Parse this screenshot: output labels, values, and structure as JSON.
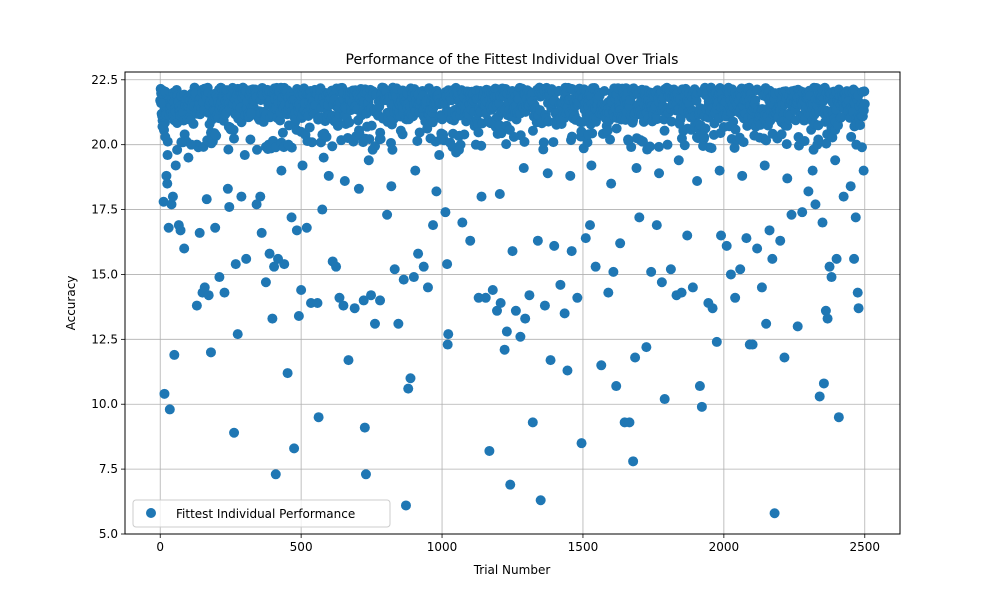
{
  "chart_data": {
    "type": "scatter",
    "title": "Performance of the Fittest Individual Over Trials",
    "xlabel": "Trial Number",
    "ylabel": "Accuracy",
    "xlim": [
      -125,
      2625
    ],
    "ylim": [
      5.0,
      22.8
    ],
    "xticks": [
      0,
      500,
      1000,
      1500,
      2000,
      2500
    ],
    "yticks": [
      5.0,
      7.5,
      10.0,
      12.5,
      15.0,
      17.5,
      20.0,
      22.5
    ],
    "ytick_labels": [
      "5.0",
      "7.5",
      "10.0",
      "12.5",
      "15.0",
      "17.5",
      "20.0",
      "22.5"
    ],
    "grid": true,
    "legend_position": "lower-left",
    "color": "#1f77b4",
    "series": [
      {
        "name": "Fittest Individual Performance",
        "points": [
          [
            3,
            21.6
          ],
          [
            8,
            20.7
          ],
          [
            12,
            17.8
          ],
          [
            15,
            10.4
          ],
          [
            18,
            20.3
          ],
          [
            22,
            18.8
          ],
          [
            26,
            19.6
          ],
          [
            30,
            16.8
          ],
          [
            34,
            9.8
          ],
          [
            40,
            17.7
          ],
          [
            45,
            18.0
          ],
          [
            50,
            11.9
          ],
          [
            55,
            19.2
          ],
          [
            60,
            19.8
          ],
          [
            66,
            16.9
          ],
          [
            72,
            16.7
          ],
          [
            85,
            16.0
          ],
          [
            100,
            19.5
          ],
          [
            118,
            20.8
          ],
          [
            130,
            13.8
          ],
          [
            140,
            16.6
          ],
          [
            150,
            14.3
          ],
          [
            158,
            14.5
          ],
          [
            172,
            14.2
          ],
          [
            180,
            12.0
          ],
          [
            195,
            16.8
          ],
          [
            210,
            14.9
          ],
          [
            228,
            14.3
          ],
          [
            245,
            17.6
          ],
          [
            262,
            8.9
          ],
          [
            268,
            15.4
          ],
          [
            275,
            12.7
          ],
          [
            288,
            18.0
          ],
          [
            305,
            15.6
          ],
          [
            322,
            21.2
          ],
          [
            342,
            17.7
          ],
          [
            360,
            16.6
          ],
          [
            375,
            14.7
          ],
          [
            388,
            15.8
          ],
          [
            398,
            13.3
          ],
          [
            404,
            15.3
          ],
          [
            410,
            7.3
          ],
          [
            418,
            15.6
          ],
          [
            440,
            15.4
          ],
          [
            452,
            11.2
          ],
          [
            466,
            17.2
          ],
          [
            475,
            8.3
          ],
          [
            485,
            16.7
          ],
          [
            492,
            13.4
          ],
          [
            500,
            14.4
          ],
          [
            520,
            16.8
          ],
          [
            535,
            13.9
          ],
          [
            558,
            13.9
          ],
          [
            562,
            9.5
          ],
          [
            575,
            17.5
          ],
          [
            598,
            18.8
          ],
          [
            612,
            15.5
          ],
          [
            624,
            15.3
          ],
          [
            636,
            14.1
          ],
          [
            650,
            13.8
          ],
          [
            668,
            11.7
          ],
          [
            690,
            13.7
          ],
          [
            705,
            18.3
          ],
          [
            722,
            14.0
          ],
          [
            726,
            9.1
          ],
          [
            730,
            7.3
          ],
          [
            748,
            14.2
          ],
          [
            762,
            13.1
          ],
          [
            780,
            14.0
          ],
          [
            805,
            17.3
          ],
          [
            832,
            15.2
          ],
          [
            845,
            13.1
          ],
          [
            864,
            14.8
          ],
          [
            872,
            6.1
          ],
          [
            880,
            10.6
          ],
          [
            888,
            11.0
          ],
          [
            900,
            14.9
          ],
          [
            915,
            15.8
          ],
          [
            935,
            15.3
          ],
          [
            950,
            14.5
          ],
          [
            968,
            16.9
          ],
          [
            990,
            19.6
          ],
          [
            1012,
            17.4
          ],
          [
            1018,
            15.4
          ],
          [
            1020,
            12.3
          ],
          [
            1022,
            12.7
          ],
          [
            1050,
            19.7
          ],
          [
            1072,
            17.0
          ],
          [
            1100,
            16.3
          ],
          [
            1130,
            14.1
          ],
          [
            1155,
            14.1
          ],
          [
            1168,
            8.2
          ],
          [
            1180,
            14.4
          ],
          [
            1195,
            13.6
          ],
          [
            1208,
            13.9
          ],
          [
            1222,
            12.1
          ],
          [
            1230,
            12.8
          ],
          [
            1242,
            6.9
          ],
          [
            1250,
            15.9
          ],
          [
            1262,
            13.6
          ],
          [
            1278,
            12.6
          ],
          [
            1295,
            13.3
          ],
          [
            1310,
            14.2
          ],
          [
            1322,
            9.3
          ],
          [
            1340,
            16.3
          ],
          [
            1350,
            6.3
          ],
          [
            1365,
            13.8
          ],
          [
            1385,
            11.7
          ],
          [
            1398,
            16.1
          ],
          [
            1420,
            14.6
          ],
          [
            1435,
            13.5
          ],
          [
            1445,
            11.3
          ],
          [
            1460,
            15.9
          ],
          [
            1480,
            14.1
          ],
          [
            1495,
            8.5
          ],
          [
            1510,
            16.4
          ],
          [
            1525,
            16.9
          ],
          [
            1545,
            15.3
          ],
          [
            1565,
            11.5
          ],
          [
            1590,
            14.3
          ],
          [
            1608,
            15.1
          ],
          [
            1618,
            10.7
          ],
          [
            1632,
            16.2
          ],
          [
            1648,
            9.3
          ],
          [
            1665,
            9.3
          ],
          [
            1678,
            7.8
          ],
          [
            1685,
            11.8
          ],
          [
            1700,
            17.2
          ],
          [
            1725,
            12.2
          ],
          [
            1742,
            15.1
          ],
          [
            1762,
            16.9
          ],
          [
            1780,
            14.7
          ],
          [
            1790,
            10.2
          ],
          [
            1812,
            15.2
          ],
          [
            1832,
            14.2
          ],
          [
            1850,
            14.3
          ],
          [
            1870,
            16.5
          ],
          [
            1890,
            14.5
          ],
          [
            1915,
            10.7
          ],
          [
            1922,
            9.9
          ],
          [
            1945,
            13.9
          ],
          [
            1960,
            13.7
          ],
          [
            1975,
            12.4
          ],
          [
            1990,
            16.5
          ],
          [
            2010,
            16.1
          ],
          [
            2025,
            15.0
          ],
          [
            2040,
            14.1
          ],
          [
            2058,
            15.2
          ],
          [
            2080,
            16.4
          ],
          [
            2092,
            12.3
          ],
          [
            2102,
            12.3
          ],
          [
            2118,
            16.0
          ],
          [
            2135,
            14.5
          ],
          [
            2150,
            13.1
          ],
          [
            2162,
            16.7
          ],
          [
            2172,
            15.6
          ],
          [
            2180,
            5.8
          ],
          [
            2200,
            16.3
          ],
          [
            2215,
            11.8
          ],
          [
            2240,
            17.3
          ],
          [
            2262,
            13.0
          ],
          [
            2278,
            17.4
          ],
          [
            2300,
            18.2
          ],
          [
            2325,
            17.7
          ],
          [
            2340,
            10.3
          ],
          [
            2350,
            17.0
          ],
          [
            2355,
            10.8
          ],
          [
            2362,
            13.6
          ],
          [
            2368,
            13.3
          ],
          [
            2375,
            15.3
          ],
          [
            2382,
            14.9
          ],
          [
            2400,
            15.6
          ],
          [
            2408,
            9.5
          ],
          [
            2425,
            18.0
          ],
          [
            2450,
            18.4
          ],
          [
            2462,
            15.6
          ],
          [
            2468,
            17.2
          ],
          [
            2475,
            14.3
          ],
          [
            2478,
            13.7
          ],
          [
            2490,
            19.9
          ],
          [
            2496,
            19.0
          ],
          [
            25,
            18.5
          ],
          [
            110,
            20.0
          ],
          [
            165,
            17.9
          ],
          [
            240,
            18.3
          ],
          [
            300,
            19.6
          ],
          [
            355,
            18.0
          ],
          [
            430,
            19.0
          ],
          [
            505,
            19.2
          ],
          [
            580,
            19.5
          ],
          [
            655,
            18.6
          ],
          [
            740,
            19.4
          ],
          [
            820,
            18.4
          ],
          [
            905,
            19.0
          ],
          [
            980,
            18.2
          ],
          [
            1060,
            19.8
          ],
          [
            1140,
            18.0
          ],
          [
            1205,
            18.1
          ],
          [
            1290,
            19.1
          ],
          [
            1375,
            18.9
          ],
          [
            1455,
            18.8
          ],
          [
            1530,
            19.2
          ],
          [
            1600,
            18.5
          ],
          [
            1690,
            19.1
          ],
          [
            1770,
            18.9
          ],
          [
            1840,
            19.4
          ],
          [
            1905,
            18.6
          ],
          [
            1985,
            19.0
          ],
          [
            2065,
            18.8
          ],
          [
            2145,
            19.2
          ],
          [
            2225,
            18.7
          ],
          [
            2315,
            19.0
          ],
          [
            2395,
            19.4
          ],
          [
            75,
            20.1
          ],
          [
            195,
            20.4
          ],
          [
            320,
            20.2
          ],
          [
            455,
            20.0
          ],
          [
            590,
            20.3
          ],
          [
            720,
            20.1
          ],
          [
            860,
            20.4
          ],
          [
            995,
            20.2
          ],
          [
            1120,
            20.0
          ],
          [
            1255,
            20.3
          ],
          [
            1395,
            20.1
          ],
          [
            1520,
            20.4
          ],
          [
            1660,
            20.2
          ],
          [
            1800,
            20.0
          ],
          [
            1930,
            20.3
          ],
          [
            2070,
            20.1
          ],
          [
            2205,
            20.4
          ],
          [
            2335,
            20.2
          ],
          [
            2470,
            20.0
          ]
        ],
        "band": {
          "x_start": 0,
          "x_end": 2500,
          "count": 1500,
          "y_min": 19.8,
          "y_max": 22.2,
          "peak_y": 21.6
        }
      }
    ]
  }
}
